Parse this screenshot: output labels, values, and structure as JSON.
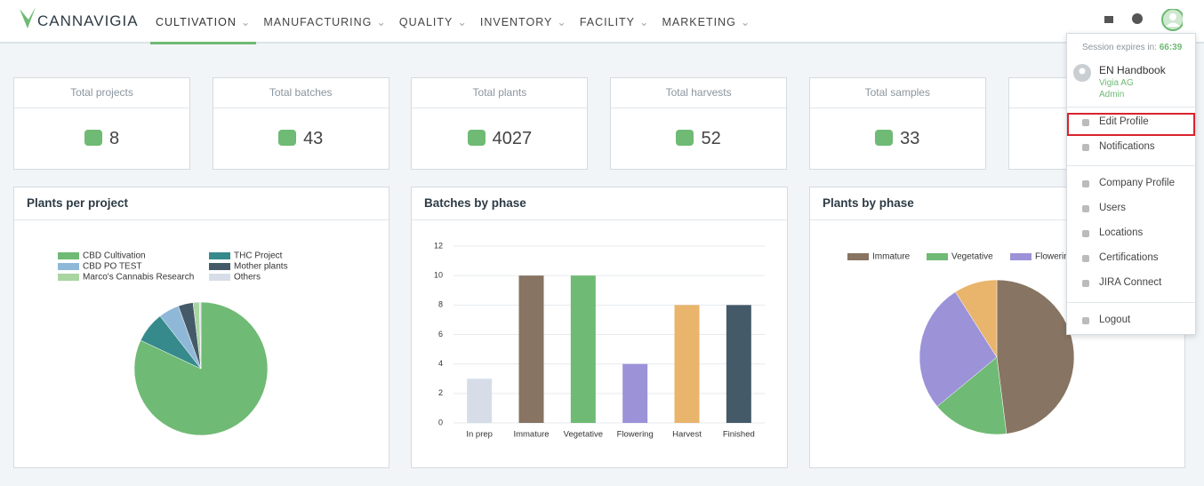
{
  "header": {
    "logo": "CANNAVIGIA",
    "nav": [
      "CULTIVATION",
      "MANUFACTURING",
      "QUALITY",
      "INVENTORY",
      "FACILITY",
      "MARKETING"
    ]
  },
  "stats": [
    {
      "label": "Total projects",
      "value": "8"
    },
    {
      "label": "Total batches",
      "value": "43"
    },
    {
      "label": "Total plants",
      "value": "4027"
    },
    {
      "label": "Total harvests",
      "value": "52"
    },
    {
      "label": "Total samples",
      "value": "33"
    }
  ],
  "menu": {
    "session_label": "Session expires in:",
    "session_time": "66:39",
    "user": {
      "name": "EN Handbook",
      "company": "Vigia AG",
      "role": "Admin"
    },
    "items": [
      "Edit Profile",
      "Notifications",
      "Company Profile",
      "Users",
      "Locations",
      "Certifications",
      "JIRA Connect",
      "Logout"
    ]
  },
  "chart_data": [
    {
      "type": "pie",
      "title": "Plants per project",
      "categories": [
        "CBD Cultivation",
        "THC Project",
        "CBD PO TEST",
        "Mother plants",
        "Marco's Cannabis Research",
        "Others"
      ],
      "values": [
        82,
        7.5,
        5,
        3.6,
        1.5,
        0.4
      ],
      "colors": [
        "#6fba74",
        "#368a8c",
        "#8fb8d8",
        "#455a68",
        "#a8d5a0",
        "#d6dde8"
      ]
    },
    {
      "type": "bar",
      "title": "Batches by phase",
      "categories": [
        "In prep",
        "Immature",
        "Vegetative",
        "Flowering",
        "Harvest",
        "Finished"
      ],
      "values": [
        3,
        10,
        10,
        4,
        8,
        8
      ],
      "colors": [
        "#d6dde8",
        "#877462",
        "#6fba74",
        "#9b92d8",
        "#e9b46c",
        "#455a68"
      ],
      "ylim": [
        0,
        12
      ],
      "yticks": [
        0,
        2,
        4,
        6,
        8,
        10,
        12
      ],
      "grid": true
    },
    {
      "type": "pie",
      "title": "Plants by phase",
      "categories": [
        "Immature",
        "Vegetative",
        "Flowering",
        null
      ],
      "values": [
        48,
        16,
        27,
        9
      ],
      "colors": [
        "#877462",
        "#6fba74",
        "#9b92d8",
        "#e9b46c"
      ]
    }
  ]
}
